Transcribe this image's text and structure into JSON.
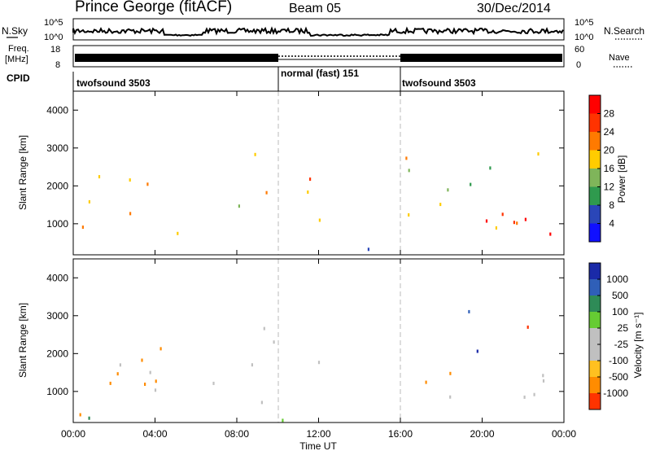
{
  "header": {
    "station": "Prince George (fitACF)",
    "beam": "Beam 05",
    "date": "30/Dec/2014"
  },
  "panels": {
    "nsky_label": "N.Sky",
    "nsky_ticks": [
      "10^5",
      "10^0"
    ],
    "nsearch_label": "N.Search",
    "freq_label": "Freq.",
    "freq_unit": "[MHz]",
    "freq_ticks": [
      "18",
      "8"
    ],
    "nave_label": "Nave",
    "nave_ticks": [
      "60",
      "0"
    ],
    "cpid_label": "CPID",
    "cpid_segments": [
      {
        "label": "twofsound 3503",
        "start_hour": 0,
        "end_hour": 10
      },
      {
        "label": "normal (fast) 151",
        "start_hour": 10,
        "end_hour": 16
      },
      {
        "label": "twofsound 3503",
        "start_hour": 16,
        "end_hour": 24
      }
    ]
  },
  "chart_data": [
    {
      "type": "heatmap",
      "name": "power",
      "ylabel": "Slant Range [km]",
      "colorbar_label": "Power [dB]",
      "colorbar_ticks": [
        "28",
        "24",
        "20",
        "16",
        "12",
        "8",
        "4"
      ],
      "colorbar_colors": [
        "#ff0000",
        "#ff3300",
        "#ff7a00",
        "#ffcc00",
        "#7fb55a",
        "#2f9a4e",
        "#2a46b8",
        "#1010ff"
      ],
      "y_ticks": [
        "4000",
        "3000",
        "2000",
        "1000"
      ],
      "ylim": [
        180,
        4500
      ],
      "regions": [
        {
          "t0": 0.0,
          "t1": 4.0,
          "r0": 400,
          "r1": 2400,
          "value": 20
        },
        {
          "t0": 0.1,
          "t1": 2.6,
          "r0": 750,
          "r1": 1150,
          "value": 27
        },
        {
          "t0": 2.5,
          "t1": 6.2,
          "r0": 250,
          "r1": 800,
          "value": 18
        },
        {
          "t0": 5.2,
          "t1": 6.0,
          "r0": 250,
          "r1": 650,
          "value": 26
        },
        {
          "t0": 7.5,
          "t1": 10.2,
          "r0": 850,
          "r1": 1500,
          "value": 10
        },
        {
          "t0": 8.8,
          "t1": 12.3,
          "r0": 1650,
          "r1": 3100,
          "value": 17
        },
        {
          "t0": 10.4,
          "t1": 12.0,
          "r0": 1700,
          "r1": 2200,
          "value": 25
        },
        {
          "t0": 10.6,
          "t1": 13.0,
          "r0": 550,
          "r1": 1250,
          "value": 14
        },
        {
          "t0": 10.0,
          "t1": 16.0,
          "r0": 180,
          "r1": 420,
          "value": 6
        },
        {
          "t0": 16.0,
          "t1": 24.0,
          "r0": 650,
          "r1": 1600,
          "value": 21
        },
        {
          "t0": 17.5,
          "t1": 23.8,
          "r0": 250,
          "r1": 1200,
          "value": 27
        },
        {
          "t0": 16.0,
          "t1": 18.0,
          "r0": 1400,
          "r1": 2800,
          "value": 15
        },
        {
          "t0": 18.0,
          "t1": 23.0,
          "r0": 1800,
          "r1": 3000,
          "value": 12
        }
      ]
    },
    {
      "type": "heatmap",
      "name": "velocity",
      "ylabel": "Slant Range [km]",
      "colorbar_label": "Velocity [m s⁻¹]",
      "colorbar_ticks": [
        "1000",
        "500",
        "100",
        "25",
        "-25",
        "-100",
        "-500",
        "-1000"
      ],
      "colorbar_colors": [
        "#1a2aa8",
        "#2f5fb8",
        "#2e8b57",
        "#66cc33",
        "#c0c0c0",
        "#c0c0c0",
        "#ffc020",
        "#ff8c00",
        "#ff3300"
      ],
      "y_ticks": [
        "4000",
        "3000",
        "2000",
        "1000"
      ],
      "ylim": [
        180,
        4500
      ],
      "regions": [
        {
          "t0": 0.0,
          "t1": 5.5,
          "r0": 300,
          "r1": 2200,
          "value": -300
        },
        {
          "t0": 2.0,
          "t1": 6.0,
          "r0": 900,
          "r1": 2000,
          "value": 0
        },
        {
          "t0": 0.5,
          "t1": 3.5,
          "r0": 180,
          "r1": 500,
          "value": 150
        },
        {
          "t0": 8.5,
          "t1": 12.5,
          "r0": 1700,
          "r1": 3200,
          "value": 0
        },
        {
          "t0": 6.0,
          "t1": 10.0,
          "r0": 700,
          "r1": 1500,
          "value": 0
        },
        {
          "t0": 10.0,
          "t1": 16.0,
          "r0": 180,
          "r1": 500,
          "value": 60
        },
        {
          "t0": 16.0,
          "t1": 24.0,
          "r0": 600,
          "r1": 1600,
          "value": 0
        },
        {
          "t0": 16.5,
          "t1": 19.0,
          "r0": 600,
          "r1": 1500,
          "value": -250
        },
        {
          "t0": 18.0,
          "t1": 20.0,
          "r0": 1800,
          "r1": 3400,
          "value": 700
        },
        {
          "t0": 21.0,
          "t1": 22.5,
          "r0": 2200,
          "r1": 2800,
          "value": -700
        }
      ]
    }
  ],
  "time_axis": {
    "xlabel": "Time UT",
    "xlim": [
      0,
      24
    ],
    "ticks": [
      "00:00",
      "04:00",
      "08:00",
      "12:00",
      "16:00",
      "20:00",
      "00:00"
    ]
  }
}
